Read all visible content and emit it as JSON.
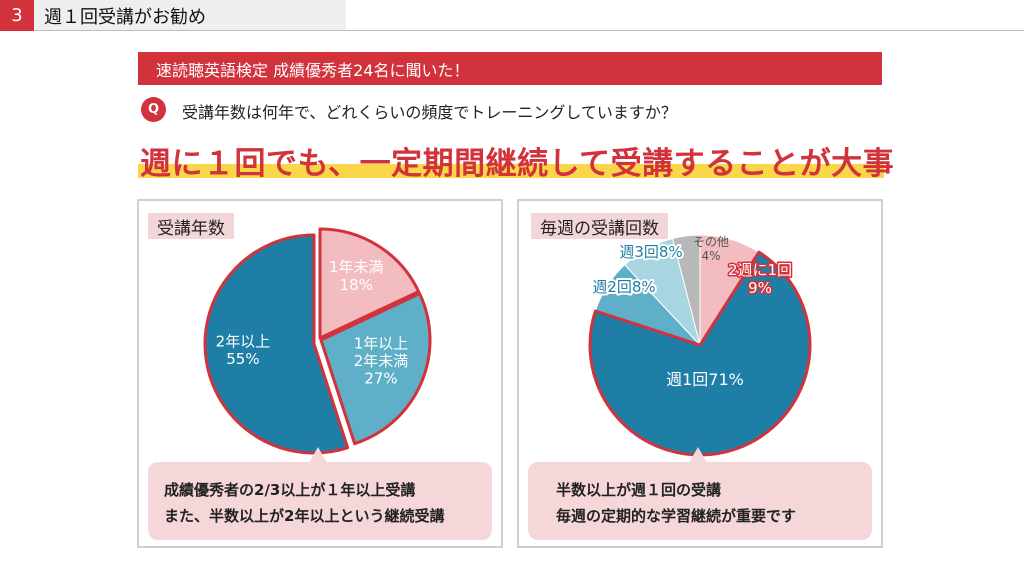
{
  "header": {
    "slide_number": "3",
    "title": "週１回受講がお勧め"
  },
  "banner": {
    "text": "速読聴英語検定 成績優秀者24名に聞いた！"
  },
  "question": {
    "badge": "Q",
    "text": "受講年数は何年で、どれくらいの頻度でトレーニングしていますか？"
  },
  "headline": {
    "text": "週に１回でも、一定期間継続して受講することが大事"
  },
  "colors": {
    "accent_red": "#d2323c",
    "highlight_yellow": "#f9d64a",
    "dark_blue": "#1f7ea6",
    "mid_blue": "#5fafc9",
    "light_blue": "#a9d4e2",
    "pink": "#f2bcc0",
    "gray": "#b8b8b8",
    "callout_bg": "#f5d7d9"
  },
  "chart_data": [
    {
      "type": "pie",
      "title": "受講年数",
      "slices": [
        {
          "label": "1年未満",
          "value": 18
        },
        {
          "label": "1年以上2年未満",
          "value": 27
        },
        {
          "label": "2年以上",
          "value": 55
        }
      ],
      "slice_labels": [
        [
          "1年未満",
          "18%"
        ],
        [
          "1年以上",
          "2年未満",
          "27%"
        ],
        [
          "2年以上",
          "55%"
        ]
      ],
      "unit": "%",
      "callout": [
        "成績優秀者の2/3以上が１年以上受講",
        "また、半数以上が2年以上という継続受講"
      ]
    },
    {
      "type": "pie",
      "title": "毎週の受講回数",
      "slices": [
        {
          "label": "2週に1回",
          "value": 9
        },
        {
          "label": "週1回",
          "value": 71
        },
        {
          "label": "週2回",
          "value": 8
        },
        {
          "label": "週3回",
          "value": 8
        },
        {
          "label": "その他",
          "value": 4
        }
      ],
      "slice_labels": [
        [
          "2週に1回",
          "9%"
        ],
        [
          "週1回71%"
        ],
        [
          "週2回8%"
        ],
        [
          "週3回8%"
        ],
        [
          "その他",
          "4%"
        ]
      ],
      "unit": "%",
      "callout": [
        "半数以上が週１回の受講",
        "毎週の定期的な学習継続が重要です"
      ]
    }
  ]
}
